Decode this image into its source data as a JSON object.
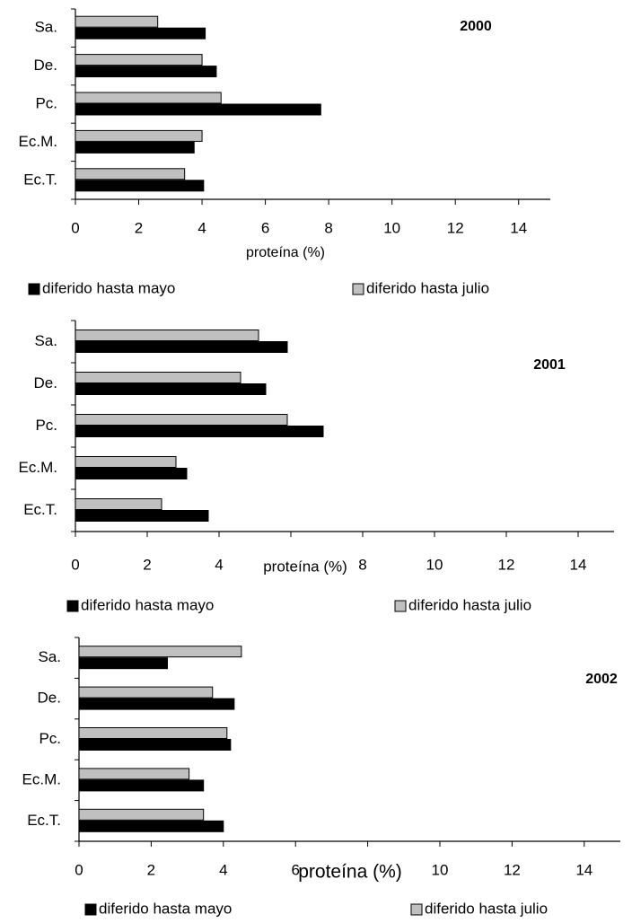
{
  "chart_data": [
    {
      "type": "hbar",
      "title": "2000",
      "x_label": "proteína  (%)",
      "categories": [
        "Sa.",
        "De.",
        "Pc.",
        "Ec.M.",
        "Ec.T."
      ],
      "series": [
        {
          "name": "diferido hasta mayo",
          "color": "#000000",
          "values": [
            4.1,
            4.45,
            7.75,
            3.75,
            4.05
          ]
        },
        {
          "name": "diferido hasta julio",
          "color": "#c0c0c0",
          "values": [
            2.6,
            4.0,
            4.6,
            4.0,
            3.45
          ]
        }
      ],
      "xlim": [
        0,
        15
      ],
      "xticks": [
        0,
        2,
        4,
        6,
        8,
        10,
        12,
        14
      ]
    },
    {
      "type": "hbar",
      "title": "2001",
      "x_label": "proteína  (%)",
      "categories": [
        "Sa.",
        "De.",
        "Pc.",
        "Ec.M.",
        "Ec.T."
      ],
      "series": [
        {
          "name": "diferido hasta mayo",
          "color": "#000000",
          "values": [
            5.9,
            5.3,
            6.9,
            3.1,
            3.7
          ]
        },
        {
          "name": "diferido hasta julio",
          "color": "#c0c0c0",
          "values": [
            5.1,
            4.6,
            5.9,
            2.8,
            2.4
          ]
        }
      ],
      "xlim": [
        0,
        15
      ],
      "xticks": [
        0,
        2,
        4,
        6,
        8,
        10,
        12,
        14
      ]
    },
    {
      "type": "hbar",
      "title": "2002",
      "x_label": "proteína  (%)",
      "categories": [
        "Sa.",
        "De.",
        "Pc.",
        "Ec.M.",
        "Ec.T."
      ],
      "series": [
        {
          "name": "diferido hasta mayo",
          "color": "#000000",
          "values": [
            2.45,
            4.3,
            4.2,
            3.45,
            4.0
          ]
        },
        {
          "name": "diferido hasta julio",
          "color": "#c0c0c0",
          "values": [
            4.5,
            3.7,
            4.1,
            3.05,
            3.45
          ]
        }
      ],
      "xlim": [
        0,
        15
      ],
      "xticks": [
        0,
        2,
        4,
        6,
        8,
        10,
        12,
        14
      ]
    }
  ]
}
